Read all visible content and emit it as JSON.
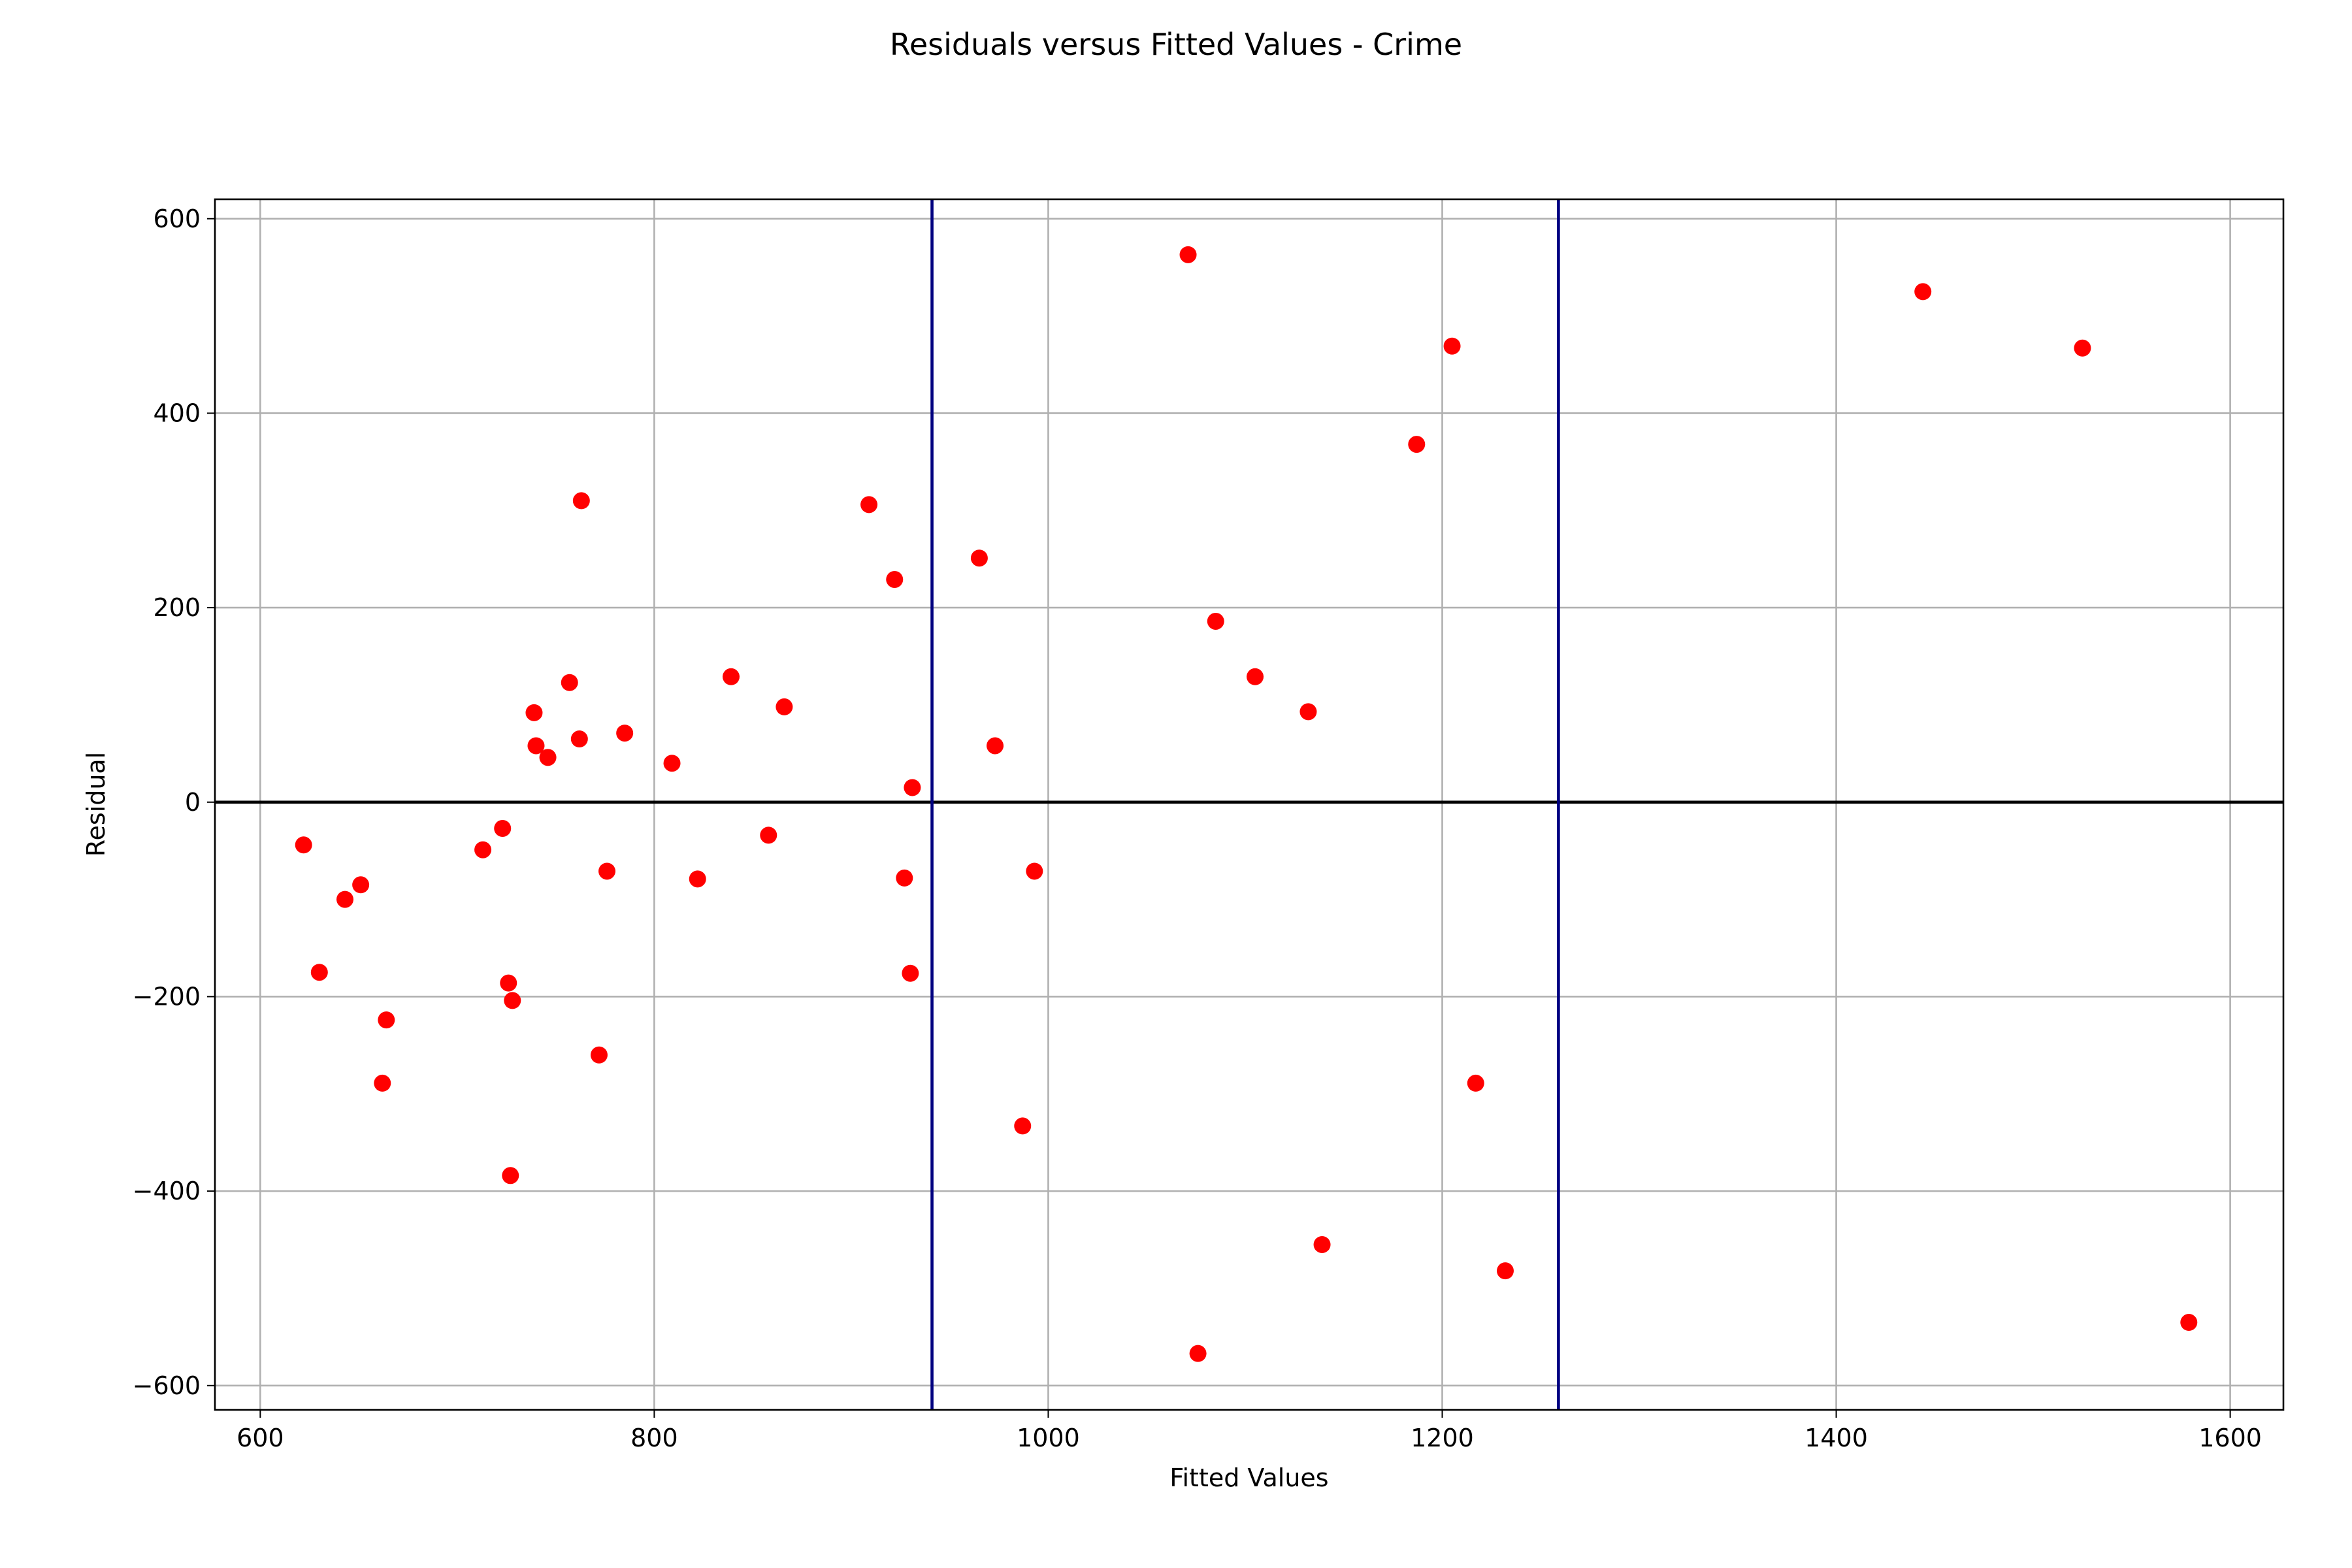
{
  "chart_data": {
    "type": "scatter",
    "title": "Residuals versus Fitted Values - Crime",
    "xlabel": "Fitted Values",
    "ylabel": "Residual",
    "xlim": [
      577,
      1627
    ],
    "ylim": [
      -625,
      620
    ],
    "xticks": [
      600,
      800,
      1000,
      1200,
      1400,
      1600
    ],
    "yticks": [
      -600,
      -400,
      -200,
      0,
      200,
      400,
      600
    ],
    "xtick_labels": [
      "600",
      "800",
      "1000",
      "1200",
      "1400",
      "1600"
    ],
    "ytick_labels": [
      "−600",
      "−400",
      "−200",
      "0",
      "200",
      "400",
      "600"
    ],
    "grid": true,
    "point_color": "#ff0000",
    "hline": {
      "y": 0,
      "color": "#000000"
    },
    "vlines": [
      {
        "x": 941,
        "color": "#000080"
      },
      {
        "x": 1259,
        "color": "#000080"
      }
    ],
    "points": [
      {
        "x": 622,
        "y": -44
      },
      {
        "x": 630,
        "y": -175
      },
      {
        "x": 643,
        "y": -100
      },
      {
        "x": 651,
        "y": -85
      },
      {
        "x": 662,
        "y": -289
      },
      {
        "x": 664,
        "y": -224
      },
      {
        "x": 713,
        "y": -49
      },
      {
        "x": 723,
        "y": -27
      },
      {
        "x": 726,
        "y": -186
      },
      {
        "x": 727,
        "y": -384
      },
      {
        "x": 728,
        "y": -204
      },
      {
        "x": 739,
        "y": 92
      },
      {
        "x": 740,
        "y": 58
      },
      {
        "x": 746,
        "y": 46
      },
      {
        "x": 757,
        "y": 123
      },
      {
        "x": 762,
        "y": 65
      },
      {
        "x": 763,
        "y": 310
      },
      {
        "x": 772,
        "y": -260
      },
      {
        "x": 776,
        "y": -71
      },
      {
        "x": 785,
        "y": 71
      },
      {
        "x": 809,
        "y": 40
      },
      {
        "x": 822,
        "y": -79
      },
      {
        "x": 839,
        "y": 129
      },
      {
        "x": 858,
        "y": -34
      },
      {
        "x": 866,
        "y": 98
      },
      {
        "x": 909,
        "y": 306
      },
      {
        "x": 922,
        "y": 229
      },
      {
        "x": 927,
        "y": -78
      },
      {
        "x": 930,
        "y": -176
      },
      {
        "x": 931,
        "y": 15
      },
      {
        "x": 965,
        "y": 251
      },
      {
        "x": 973,
        "y": 58
      },
      {
        "x": 987,
        "y": -333
      },
      {
        "x": 993,
        "y": -71
      },
      {
        "x": 1071,
        "y": 563
      },
      {
        "x": 1076,
        "y": -567
      },
      {
        "x": 1085,
        "y": 186
      },
      {
        "x": 1105,
        "y": 129
      },
      {
        "x": 1132,
        "y": 93
      },
      {
        "x": 1139,
        "y": -455
      },
      {
        "x": 1187,
        "y": 368
      },
      {
        "x": 1205,
        "y": 469
      },
      {
        "x": 1217,
        "y": -289
      },
      {
        "x": 1232,
        "y": -482
      },
      {
        "x": 1444,
        "y": 525
      },
      {
        "x": 1525,
        "y": 467
      },
      {
        "x": 1579,
        "y": -535
      }
    ]
  }
}
